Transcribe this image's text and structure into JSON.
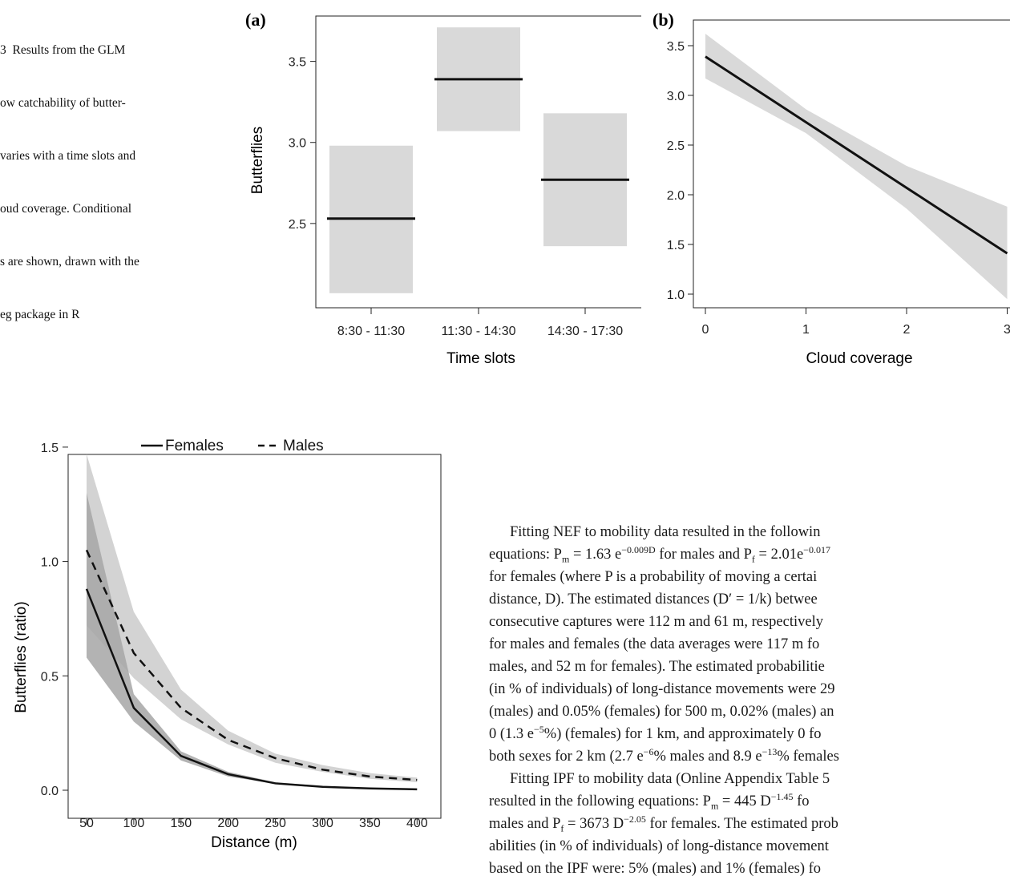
{
  "caption": {
    "lines": [
      "3  Results from the GLM",
      "ow catchability of butter-",
      "varies with a time slots and",
      "oud coverage. Conditional",
      "s are shown, drawn with the",
      "eg package in R"
    ]
  },
  "charts": {
    "a": {
      "panel_label": "(a)",
      "ylabel": "Butterflies",
      "xlabel": "Time slots",
      "yticks": [
        "2.5",
        "3.0",
        "3.5"
      ]
    },
    "b": {
      "panel_label": "(b)",
      "xlabel": "Cloud coverage",
      "xticks": [
        "0",
        "1",
        "2",
        "3"
      ],
      "yticks": [
        "1.0",
        "1.5",
        "2.0",
        "2.5",
        "3.0",
        "3.5"
      ]
    },
    "c": {
      "ylabel": "Butterflies (ratio)",
      "xlabel": "Distance (m)",
      "legend": [
        "Females",
        "Males"
      ],
      "xticks": [
        "50",
        "100",
        "150",
        "200",
        "250",
        "300",
        "350",
        "400"
      ],
      "yticks": [
        "0.0",
        "0.5",
        "1.0",
        "1.5"
      ]
    }
  },
  "chart_data": [
    {
      "type": "bar",
      "panel": "(a)",
      "xlabel": "Time slots",
      "ylabel": "Butterflies",
      "categories": [
        "8:30 - 11:30",
        "11:30 - 14:30",
        "14:30 - 17:30"
      ],
      "values": [
        2.53,
        3.39,
        2.77
      ],
      "lower": [
        2.07,
        3.07,
        2.36
      ],
      "upper": [
        2.98,
        3.71,
        3.18
      ],
      "ylim": [
        1.98,
        3.78
      ]
    },
    {
      "type": "line",
      "panel": "(b)",
      "xlabel": "Cloud coverage",
      "xlim": [
        -0.05,
        3.0
      ],
      "ylim": [
        0.95,
        3.6
      ],
      "x": [
        0,
        1,
        2,
        3
      ],
      "values": [
        3.39,
        2.73,
        2.07,
        1.41
      ],
      "lower": [
        3.17,
        2.62,
        1.86,
        0.95
      ],
      "upper": [
        3.62,
        2.86,
        2.29,
        1.88
      ]
    },
    {
      "type": "line",
      "xlabel": "Distance (m)",
      "ylabel": "Butterflies (ratio)",
      "xlim": [
        40,
        410
      ],
      "ylim": [
        -0.04,
        1.55
      ],
      "legend_position": "top",
      "series": [
        {
          "name": "Females",
          "x": [
            50,
            100,
            150,
            200,
            250,
            300,
            350,
            400
          ],
          "values": [
            0.88,
            0.36,
            0.15,
            0.07,
            0.03,
            0.015,
            0.008,
            0.004
          ],
          "lower": [
            0.58,
            0.3,
            0.13,
            0.06,
            0.028,
            0.013,
            0.007,
            0.003
          ],
          "upper": [
            1.3,
            0.42,
            0.17,
            0.08,
            0.035,
            0.018,
            0.01,
            0.005
          ]
        },
        {
          "name": "Males",
          "x": [
            50,
            100,
            150,
            200,
            250,
            300,
            350,
            400
          ],
          "values": [
            1.05,
            0.6,
            0.36,
            0.22,
            0.14,
            0.09,
            0.06,
            0.045
          ],
          "lower": [
            0.72,
            0.49,
            0.31,
            0.2,
            0.12,
            0.08,
            0.05,
            0.035
          ],
          "upper": [
            1.47,
            0.78,
            0.44,
            0.26,
            0.16,
            0.11,
            0.075,
            0.055
          ]
        }
      ]
    }
  ],
  "body": {
    "p1": {
      "l1": "Fitting NEF to mobility data resulted in the followin",
      "l2a": "equations: P",
      "l2s1": "m",
      "l2b": " = 1.63 e",
      "l2e1": "−0.009D",
      "l2c": " for males and P",
      "l2s2": "f",
      "l2d": " = 2.01e",
      "l2e2": "−0.017",
      "l3": "for females (where P is a probability of moving a certai",
      "l4": "distance, D). The estimated distances (D′ = 1/k) betwee",
      "l5": "consecutive captures were 112 m and 61 m, respectively",
      "l6": "for males and females (the data averages were 117 m fo",
      "l7": "males, and 52 m for females). The estimated probabilitie",
      "l8": "(in % of individuals) of long-distance movements were 29",
      "l9": "(males) and 0.05% (females) for 500 m, 0.02% (males) an",
      "l10a": "0 (1.3 e",
      "l10e": "−5",
      "l10b": "%) (females) for 1 km, and approximately 0 fo",
      "l11a": "both sexes for 2 km (2.7 e",
      "l11e1": "−6",
      "l11b": "% males and 8.9 e",
      "l11e2": "−13",
      "l11c": "% females"
    },
    "p2": {
      "l1": "Fitting IPF to mobility data (Online Appendix Table 5",
      "l2a": "resulted in the following equations: P",
      "l2s1": "m",
      "l2b": " = 445 D",
      "l2e1": "−1.45",
      "l2c": " fo",
      "l3a": "males and P",
      "l3s1": "f",
      "l3b": " = 3673 D",
      "l3e1": "−2.05",
      "l3c": " for females. The estimated prob",
      "l4": "abilities (in % of individuals) of long-distance movement",
      "l5": "based on the IPF were: 5% (males) and 1% (females) fo"
    }
  }
}
